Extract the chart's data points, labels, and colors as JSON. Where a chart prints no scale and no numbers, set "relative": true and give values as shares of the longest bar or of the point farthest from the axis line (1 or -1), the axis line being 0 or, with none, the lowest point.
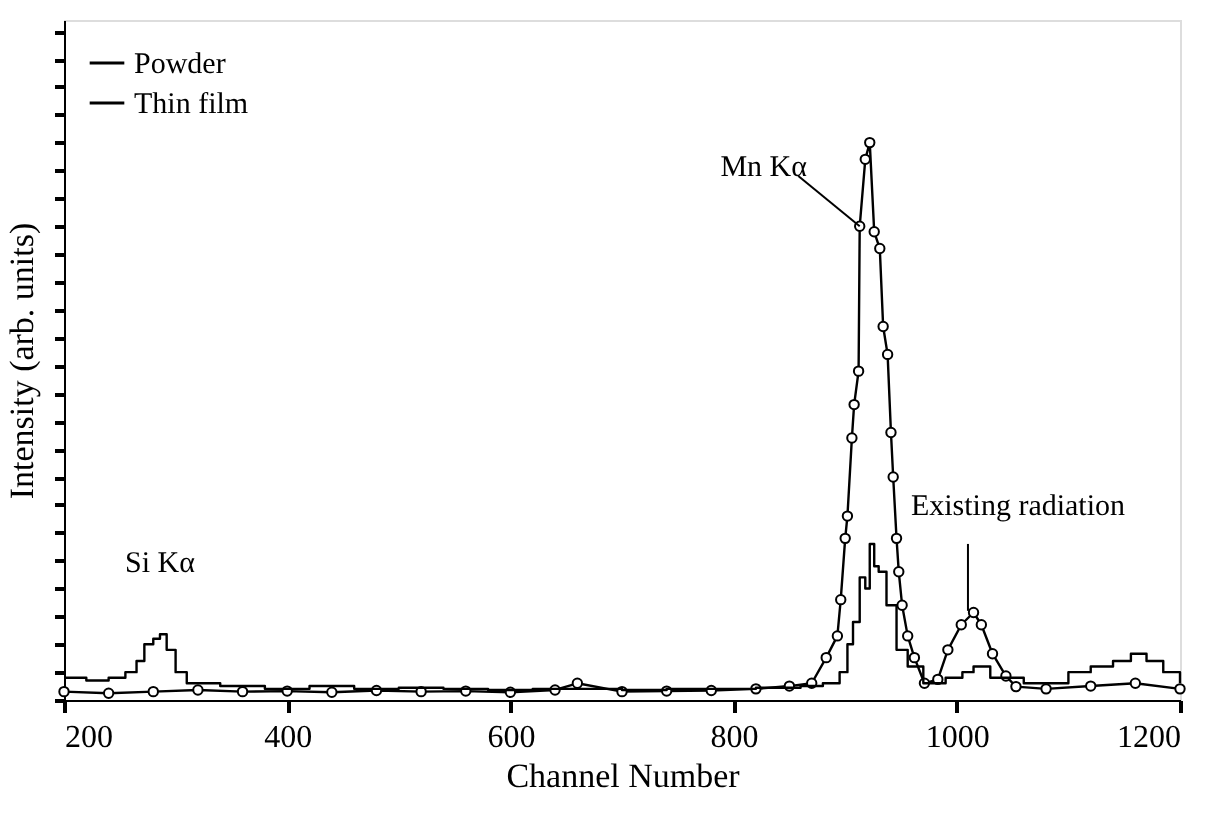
{
  "chart_data": {
    "type": "line",
    "relative": true,
    "xlabel": "Channel Number",
    "ylabel": "Intensity (arb. units)",
    "xlim": [
      200,
      1200
    ],
    "xticks": [
      200,
      400,
      600,
      800,
      1000,
      1200
    ],
    "grid": false,
    "legend": "top left",
    "annotations": [
      {
        "text": "Si Kα",
        "x": 286,
        "y": 0.118
      },
      {
        "text": "Mn Kα",
        "x": 913,
        "y": 0.85
      },
      {
        "text": "Existing radiation",
        "x": 1010,
        "y": 0.16
      }
    ],
    "series": [
      {
        "name": "Powder",
        "marker": "circle",
        "color": "#000000",
        "x": [
          200,
          240,
          280,
          320,
          360,
          400,
          440,
          480,
          520,
          560,
          600,
          640,
          660,
          700,
          740,
          780,
          820,
          850,
          870,
          883,
          893,
          896,
          900,
          902,
          906,
          908,
          912,
          913,
          918,
          922,
          926,
          931,
          934,
          938,
          941,
          943,
          946,
          948,
          951,
          956,
          962,
          971,
          983,
          992,
          1004,
          1015,
          1022,
          1032,
          1044,
          1053,
          1080,
          1120,
          1160,
          1200
        ],
        "values": [
          0.015,
          0.012,
          0.015,
          0.018,
          0.015,
          0.016,
          0.014,
          0.017,
          0.015,
          0.016,
          0.014,
          0.018,
          0.03,
          0.015,
          0.016,
          0.017,
          0.02,
          0.025,
          0.03,
          0.076,
          0.115,
          0.18,
          0.29,
          0.33,
          0.47,
          0.53,
          0.59,
          0.85,
          0.97,
          1.0,
          0.84,
          0.81,
          0.67,
          0.62,
          0.48,
          0.4,
          0.29,
          0.23,
          0.17,
          0.115,
          0.076,
          0.03,
          0.037,
          0.09,
          0.135,
          0.157,
          0.135,
          0.083,
          0.043,
          0.024,
          0.02,
          0.025,
          0.03,
          0.02
        ]
      },
      {
        "name": "Thin film",
        "type": "step",
        "marker": "none",
        "color": "#000000",
        "x": [
          200,
          220,
          240,
          255,
          265,
          272,
          280,
          286,
          292,
          300,
          310,
          340,
          380,
          420,
          460,
          500,
          540,
          580,
          620,
          660,
          700,
          740,
          780,
          820,
          860,
          880,
          895,
          902,
          907,
          913,
          918,
          922,
          926,
          930,
          937,
          946,
          956,
          970,
          990,
          1005,
          1015,
          1030,
          1060,
          1100,
          1120,
          1140,
          1156,
          1170,
          1185,
          1200
        ],
        "values": [
          0.04,
          0.035,
          0.04,
          0.05,
          0.07,
          0.1,
          0.11,
          0.118,
          0.09,
          0.05,
          0.03,
          0.025,
          0.02,
          0.025,
          0.02,
          0.022,
          0.02,
          0.018,
          0.02,
          0.02,
          0.018,
          0.02,
          0.02,
          0.022,
          0.025,
          0.03,
          0.05,
          0.1,
          0.14,
          0.22,
          0.2,
          0.28,
          0.24,
          0.23,
          0.17,
          0.09,
          0.06,
          0.03,
          0.04,
          0.05,
          0.06,
          0.04,
          0.03,
          0.05,
          0.06,
          0.07,
          0.083,
          0.07,
          0.05,
          0.03
        ]
      }
    ]
  }
}
